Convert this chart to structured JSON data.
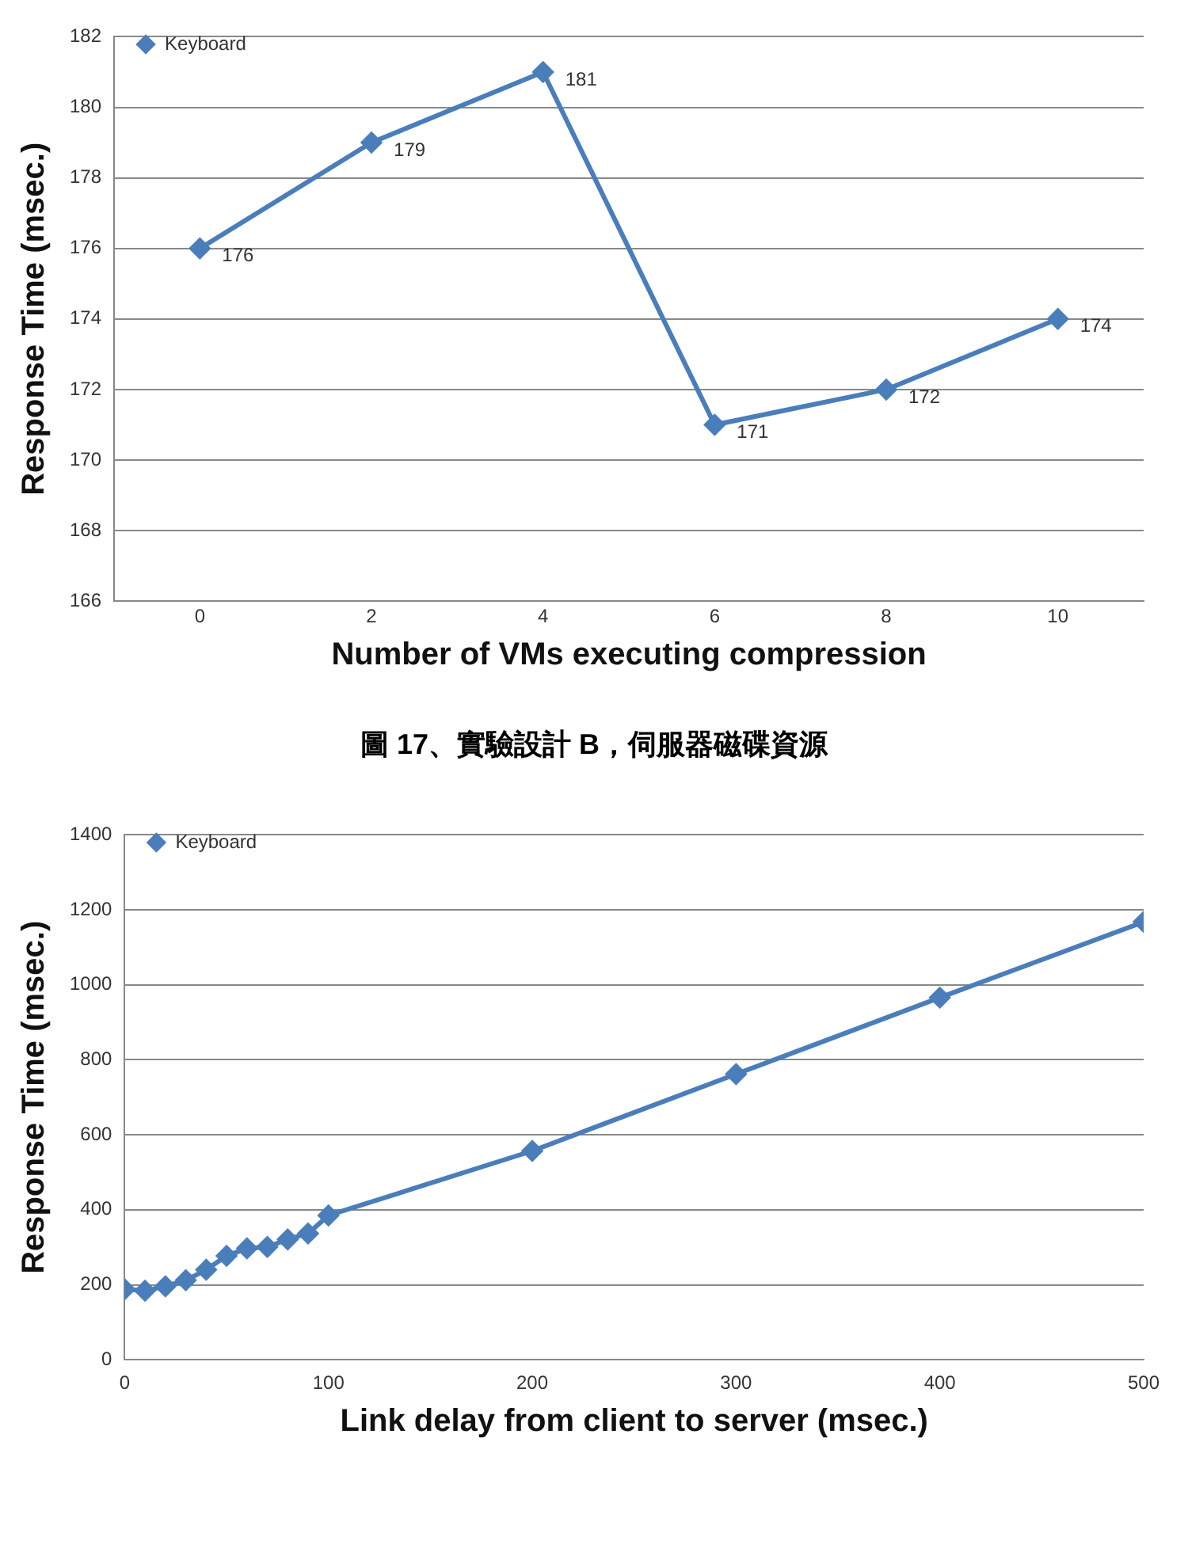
{
  "chart_data": [
    {
      "type": "line",
      "categories": [
        "0",
        "2",
        "4",
        "6",
        "8",
        "10"
      ],
      "series": [
        {
          "name": "Keyboard",
          "color": "#4a7ebb",
          "values": [
            176,
            179,
            181,
            171,
            172,
            174
          ]
        }
      ],
      "xlabel": "Number of VMs executing compression",
      "ylabel": "Response Time (msec.)",
      "ylim": [
        166,
        182
      ],
      "yticks": [
        166,
        168,
        170,
        172,
        174,
        176,
        178,
        180,
        182
      ],
      "grid": "y",
      "legend": "top left",
      "marker": "diamond",
      "data_labels": true,
      "annotations": [
        "圖  17、實驗設計 B，伺服器磁碟資源"
      ]
    },
    {
      "type": "line",
      "x": [
        0,
        10,
        20,
        30,
        40,
        50,
        60,
        70,
        80,
        90,
        100,
        200,
        300,
        400,
        500
      ],
      "series": [
        {
          "name": "Keyboard",
          "color": "#4a7ebb",
          "values": [
            188,
            184,
            196,
            212,
            240,
            277,
            297,
            301,
            321,
            337,
            385,
            557,
            762,
            966,
            1168
          ]
        }
      ],
      "xlabel": "Link delay from client to server (msec.)",
      "ylabel": "Response Time (msec.)",
      "xlim": [
        0,
        500
      ],
      "xticks": [
        0,
        100,
        200,
        300,
        400,
        500
      ],
      "ylim": [
        0,
        1400
      ],
      "yticks": [
        0,
        200,
        400,
        600,
        800,
        1000,
        1200,
        1400
      ],
      "grid": "y",
      "legend": "top left",
      "marker": "diamond"
    }
  ]
}
